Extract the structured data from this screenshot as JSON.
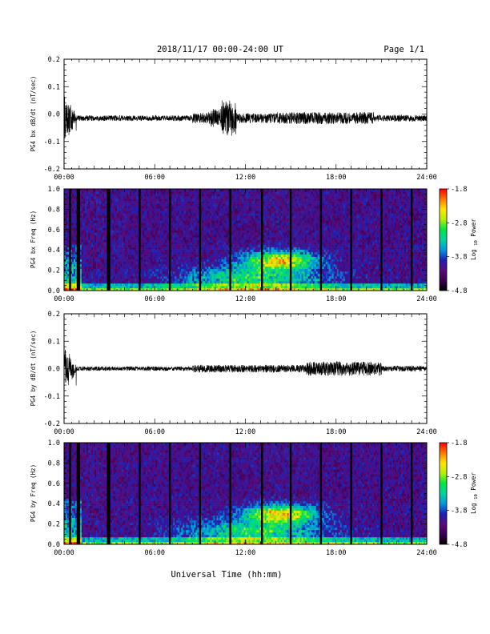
{
  "header": {
    "date_range": "2018/11/17  00:00-24:00 UT",
    "page": "Page 1/1"
  },
  "colors": {
    "background": "#ffffff",
    "axes": "#000000",
    "trace": "#000000",
    "colormap": [
      "#000000",
      "#3a0050",
      "#5a0a7a",
      "#1e1eb4",
      "#0096dc",
      "#00d2a0",
      "#00e646",
      "#b4f000",
      "#ffe600",
      "#ff7800",
      "#ff0000"
    ]
  },
  "xlabel": "Universal Time (hh:mm)",
  "chart_data": [
    {
      "type": "line",
      "ylabel": "PG4 bx dB/dt (nT/sec)",
      "xlim": [
        0,
        24
      ],
      "ylim": [
        -0.2,
        0.2
      ],
      "x_ticks": [
        "00:00",
        "06:00",
        "12:00",
        "18:00",
        "24:00"
      ],
      "y_ticks": [
        "-0.2",
        "-0.1",
        "0.0",
        "0.1",
        "0.2"
      ],
      "baseline": -0.015,
      "activity": [
        {
          "start": 0.0,
          "end": 0.8,
          "amplitude": 0.1
        },
        {
          "start": 0.8,
          "end": 8.5,
          "amplitude": 0.01
        },
        {
          "start": 8.5,
          "end": 9.6,
          "amplitude": 0.02
        },
        {
          "start": 9.6,
          "end": 10.4,
          "amplitude": 0.035
        },
        {
          "start": 10.4,
          "end": 11.4,
          "amplitude": 0.065
        },
        {
          "start": 11.4,
          "end": 14.0,
          "amplitude": 0.018
        },
        {
          "start": 14.0,
          "end": 20.5,
          "amplitude": 0.022
        },
        {
          "start": 20.5,
          "end": 24.0,
          "amplitude": 0.012
        }
      ]
    },
    {
      "type": "heatmap",
      "ylabel": "PG4 bx Freq (Hz)",
      "colorbar_label": "Log10 Power",
      "xlim": [
        0,
        24
      ],
      "ylim": [
        0.0,
        1.0
      ],
      "clim": [
        -4.8,
        -1.8
      ],
      "x_ticks": [
        "00:00",
        "06:00",
        "12:00",
        "18:00",
        "24:00"
      ],
      "y_ticks": [
        "0.0",
        "0.2",
        "0.4",
        "0.6",
        "0.8",
        "1.0"
      ],
      "colorbar_ticks": [
        "-4.8",
        "-3.8",
        "-2.8",
        "-1.8"
      ],
      "gap_hours": [
        0.4,
        0.9,
        1.0,
        2.9,
        3.0,
        5.0,
        7.0,
        9.0,
        11.0,
        13.1,
        15.0,
        17.0,
        19.0,
        21.0,
        23.0
      ]
    },
    {
      "type": "line",
      "ylabel": "PG4 by dB/dt (nT/sec)",
      "xlim": [
        0,
        24
      ],
      "ylim": [
        -0.2,
        0.2
      ],
      "x_ticks": [
        "00:00",
        "06:00",
        "12:00",
        "18:00",
        "24:00"
      ],
      "y_ticks": [
        "-0.2",
        "-0.1",
        "0.0",
        "0.1",
        "0.2"
      ],
      "baseline": 0.0,
      "activity": [
        {
          "start": 0.0,
          "end": 0.8,
          "amplitude": 0.09
        },
        {
          "start": 0.8,
          "end": 8.5,
          "amplitude": 0.008
        },
        {
          "start": 8.5,
          "end": 11.0,
          "amplitude": 0.014
        },
        {
          "start": 11.0,
          "end": 16.0,
          "amplitude": 0.014
        },
        {
          "start": 16.0,
          "end": 21.0,
          "amplitude": 0.026
        },
        {
          "start": 21.0,
          "end": 24.0,
          "amplitude": 0.01
        }
      ]
    },
    {
      "type": "heatmap",
      "ylabel": "PG4 by Freq (Hz)",
      "colorbar_label": "Log10 Power",
      "xlim": [
        0,
        24
      ],
      "ylim": [
        0.0,
        1.0
      ],
      "clim": [
        -4.8,
        -1.8
      ],
      "x_ticks": [
        "00:00",
        "06:00",
        "12:00",
        "18:00",
        "24:00"
      ],
      "y_ticks": [
        "0.0",
        "0.2",
        "0.4",
        "0.6",
        "0.8",
        "1.0"
      ],
      "colorbar_ticks": [
        "-4.8",
        "-3.8",
        "-2.8",
        "-1.8"
      ],
      "gap_hours": [
        0.4,
        0.9,
        1.0,
        2.9,
        3.0,
        5.0,
        7.0,
        9.0,
        11.0,
        13.1,
        15.0,
        17.0,
        19.0,
        21.0,
        23.0
      ]
    }
  ]
}
